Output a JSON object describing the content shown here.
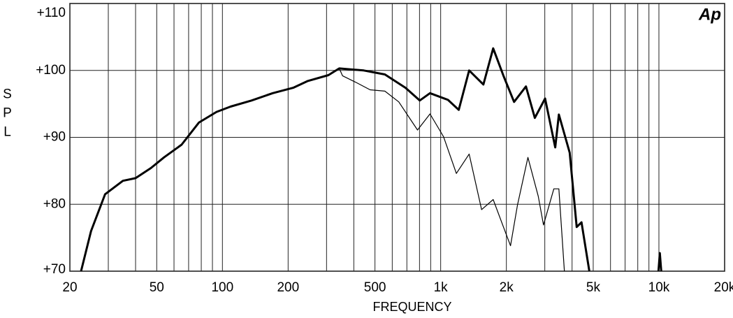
{
  "chart_data": {
    "type": "line",
    "logo": "Ap",
    "ylabel": "SPL",
    "xlabel": "FREQUENCY",
    "xscale": "log",
    "xlim": [
      20,
      20000
    ],
    "ylim": [
      70,
      110
    ],
    "xticks": [
      20,
      50,
      100,
      200,
      500,
      {
        "value": 1000,
        "label": "1k"
      },
      {
        "value": 2000,
        "label": "2k"
      },
      {
        "value": 5000,
        "label": "5k"
      },
      {
        "value": 10000,
        "label": "10k"
      },
      {
        "value": 20000,
        "label": "20k"
      }
    ],
    "x_minor_gridlines": [
      30,
      40,
      60,
      70,
      80,
      90,
      300,
      400,
      600,
      700,
      800,
      900,
      3000,
      4000,
      6000,
      7000,
      8000,
      9000
    ],
    "yticks": [
      {
        "value": 70,
        "label": "+70"
      },
      {
        "value": 80,
        "label": "+80"
      },
      {
        "value": 90,
        "label": "+90"
      },
      {
        "value": 100,
        "label": "+100"
      },
      {
        "value": 110,
        "label": "+110"
      }
    ],
    "grid": true,
    "series": [
      {
        "color": "#000000",
        "width": 3,
        "x": [
          22.5,
          25,
          29,
          35,
          40,
          47,
          54,
          65,
          78,
          94,
          109,
          136,
          170,
          211,
          245,
          306,
          343,
          444,
          555,
          690,
          802,
          894,
          1080,
          1210,
          1350,
          1570,
          1740,
          1940,
          2170,
          2460,
          2700,
          3010,
          3350,
          3480,
          3900,
          4200,
          4420,
          4800,
          9900,
          9950,
          10100,
          10250
        ],
        "values": [
          70,
          76,
          81.5,
          83.5,
          83.9,
          85.4,
          87,
          88.9,
          92.2,
          93.8,
          94.6,
          95.5,
          96.6,
          97.4,
          98.4,
          99.3,
          100.3,
          100,
          99.4,
          97.4,
          95.5,
          96.6,
          95.6,
          94.1,
          100,
          97.9,
          103.3,
          99.2,
          95.3,
          97.6,
          92.9,
          95.8,
          88.5,
          93.4,
          87.7,
          76.6,
          77.3,
          70,
          null,
          70,
          72.7,
          70
        ]
      },
      {
        "color": "#000000",
        "width": 1.2,
        "x": [
          22.5,
          25,
          29,
          35,
          40,
          47,
          54,
          65,
          78,
          94,
          109,
          136,
          170,
          211,
          245,
          306,
          343,
          355,
          410,
          475,
          555,
          643,
          783,
          894,
          1030,
          1180,
          1350,
          1540,
          1740,
          1940,
          2090,
          2250,
          2510,
          2800,
          2960,
          3300,
          3480,
          3690
        ],
        "values": [
          70,
          76,
          81.5,
          83.5,
          83.9,
          85.4,
          87,
          88.9,
          92.2,
          93.8,
          94.6,
          95.5,
          96.6,
          97.4,
          98.4,
          99.3,
          100.3,
          99.2,
          98.2,
          97.1,
          96.9,
          95.3,
          91.1,
          93.5,
          90.1,
          84.6,
          87.5,
          79.2,
          80.7,
          76.6,
          73.8,
          79.9,
          87,
          81.2,
          76.9,
          82.3,
          82.3,
          70
        ]
      }
    ]
  }
}
